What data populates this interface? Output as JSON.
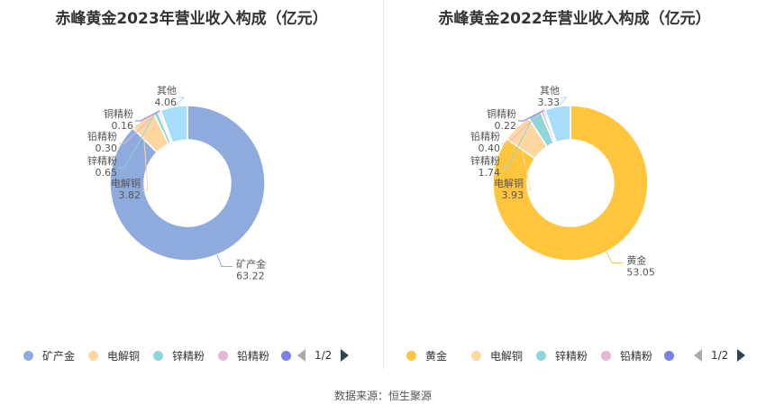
{
  "chart_data": [
    {
      "type": "pie",
      "title": "赤峰黄金2023年营业收入构成（亿元）",
      "slices": [
        {
          "label": "矿产金",
          "value": 63.22,
          "value_text": "63.22",
          "color": "#8faadc"
        },
        {
          "label": "电解铜",
          "value": 3.82,
          "value_text": "3.82",
          "color": "#fed7a0"
        },
        {
          "label": "锌精粉",
          "value": 0.65,
          "value_text": "0.65",
          "color": "#8dd6d9"
        },
        {
          "label": "铅精粉",
          "value": 0.3,
          "value_text": "0.30",
          "color": "#e6b6d9"
        },
        {
          "label": "铜精粉",
          "value": 0.16,
          "value_text": "0.16",
          "color": "#7b7fe8"
        },
        {
          "label": "其他",
          "value": 4.06,
          "value_text": "4.06",
          "color": "#a7dcfb"
        }
      ],
      "legend": [
        "矿产金",
        "电解铜",
        "锌精粉",
        "铅精粉"
      ],
      "legend_page": "1/2"
    },
    {
      "type": "pie",
      "title": "赤峰黄金2022年营业收入构成（亿元）",
      "slices": [
        {
          "label": "黄金",
          "value": 53.05,
          "value_text": "53.05",
          "color": "#ffc53d"
        },
        {
          "label": "电解铜",
          "value": 3.93,
          "value_text": "3.93",
          "color": "#fed7a0"
        },
        {
          "label": "锌精粉",
          "value": 1.74,
          "value_text": "1.74",
          "color": "#8dd6d9"
        },
        {
          "label": "铅精粉",
          "value": 0.4,
          "value_text": "0.40",
          "color": "#e6b6d9"
        },
        {
          "label": "铜精粉",
          "value": 0.22,
          "value_text": "0.22",
          "color": "#7b7fe8"
        },
        {
          "label": "其他",
          "value": 3.33,
          "value_text": "3.33",
          "color": "#a7dcfb"
        }
      ],
      "legend": [
        "黄金",
        "电解铜",
        "锌精粉",
        "铅精粉"
      ],
      "legend_page": "1/2"
    }
  ],
  "source": "数据来源：恒生聚源"
}
